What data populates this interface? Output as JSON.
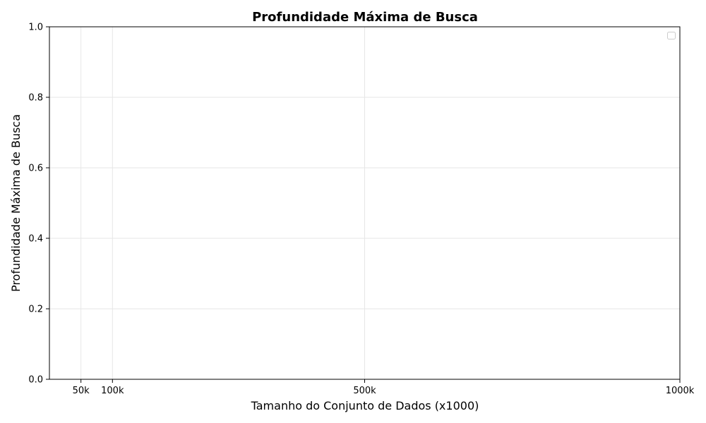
{
  "chart_data": {
    "type": "line",
    "title": "Profundidade Máxima de Busca",
    "xlabel": "Tamanho do Conjunto de Dados (x1000)",
    "ylabel": "Profundidade Máxima de Busca",
    "x_ticks": [
      {
        "value": 50,
        "label": "50k"
      },
      {
        "value": 100,
        "label": "100k"
      },
      {
        "value": 500,
        "label": "500k"
      },
      {
        "value": 1000,
        "label": "1000k"
      }
    ],
    "y_ticks": [
      {
        "value": 0.0,
        "label": "0.0"
      },
      {
        "value": 0.2,
        "label": "0.2"
      },
      {
        "value": 0.4,
        "label": "0.4"
      },
      {
        "value": 0.6,
        "label": "0.6"
      },
      {
        "value": 0.8,
        "label": "0.8"
      },
      {
        "value": 1.0,
        "label": "1.0"
      }
    ],
    "xlim": [
      0,
      1000
    ],
    "ylim": [
      0,
      1
    ],
    "grid": true,
    "legend_position": "top-right",
    "series": []
  }
}
